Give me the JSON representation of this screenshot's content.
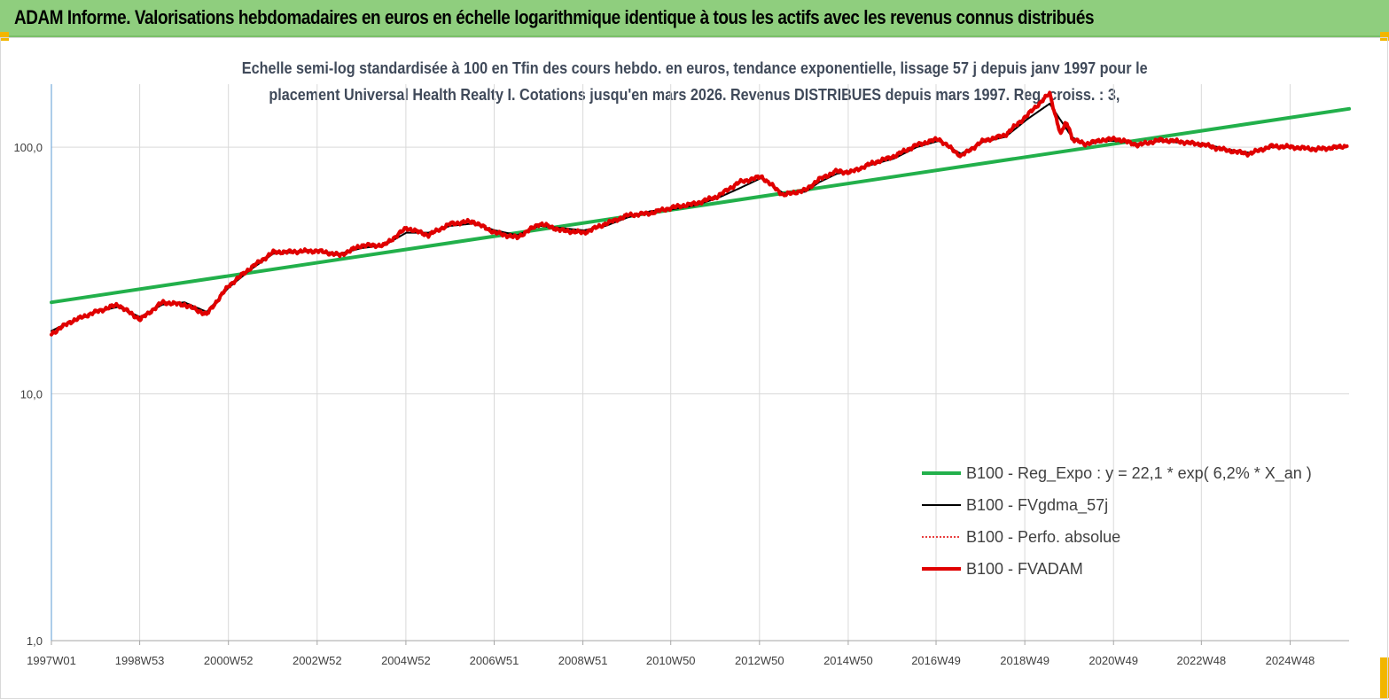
{
  "header": {
    "title": "ADAM Informe. Valorisations hebdomadaires en euros en échelle logarithmique identique à tous les actifs avec les revenus connus distribués"
  },
  "colors": {
    "header_bg": "#8fce7e",
    "accent": "#f2b600",
    "green_series": "#22b04b",
    "black_series": "#000000",
    "red_series": "#e00000"
  },
  "chart_data": {
    "type": "line",
    "title_line1": "Echelle semi-log standardisée à 100 en Tfin des cours hebdo. en euros, tendance exponentielle, lissage 57 j depuis janv 1997 pour le",
    "title_line2": "placement Universal Health Realty I. Cotations jusqu'en mars 2026. Revenus DISTRIBUES depuis mars 1997. Reg. croiss. : 3,",
    "y_scale": "log",
    "ylim": [
      1,
      180
    ],
    "y_ticks": [
      1,
      10,
      100
    ],
    "y_tick_labels": [
      "1,0",
      "10,0",
      "100,0"
    ],
    "x_range": [
      1997.0,
      2026.25
    ],
    "x_ticks": [
      1997.0,
      1998.99,
      2000.99,
      2002.99,
      2004.99,
      2006.98,
      2008.98,
      2010.96,
      2012.96,
      2014.96,
      2016.94,
      2018.94,
      2020.94,
      2022.92,
      2024.92
    ],
    "x_tick_labels": [
      "1997W01",
      "1998W53",
      "2000W52",
      "2002W52",
      "2004W52",
      "2006W51",
      "2008W51",
      "2010W50",
      "2012W50",
      "2014W50",
      "2016W49",
      "2018W49",
      "2020W49",
      "2022W48",
      "2024W48"
    ],
    "grid": "vertical",
    "legend_position": "bottom-right",
    "series": [
      {
        "name": "B100 - Reg_Expo : y = 22,1 * exp( 6,2% *  X_an )",
        "color": "#22b04b",
        "style": "solid-thick",
        "x": [
          1997.0,
          2026.25
        ],
        "values": [
          23.5,
          143
        ]
      },
      {
        "name": "B100 - FVgdma_57j",
        "color": "#000000",
        "style": "solid-thin",
        "x": [
          1997.0,
          1997.4,
          1998.0,
          1998.5,
          1999.0,
          1999.5,
          2000.0,
          2000.5,
          2001.0,
          2001.5,
          2002.0,
          2003.0,
          2003.5,
          2004.0,
          2004.5,
          2005.0,
          2005.5,
          2006.0,
          2006.5,
          2007.0,
          2007.5,
          2008.0,
          2008.5,
          2009.0,
          2009.5,
          2010.0,
          2010.5,
          2011.0,
          2011.5,
          2012.0,
          2012.5,
          2013.0,
          2013.5,
          2014.0,
          2014.3,
          2014.7,
          2015.0,
          2015.5,
          2016.0,
          2016.5,
          2017.0,
          2017.5,
          2018.0,
          2018.5,
          2019.0,
          2019.5,
          2020.0,
          2020.3,
          2020.7,
          2021.0,
          2021.5,
          2022.0,
          2022.5,
          2023.0,
          2023.5,
          2024.0,
          2024.5,
          2025.0,
          2025.5,
          2026.2
        ],
        "values": [
          18,
          19.5,
          21.5,
          22.5,
          20.5,
          23,
          23.5,
          21.5,
          27,
          32,
          37,
          38,
          37,
          39,
          40,
          45,
          45,
          48,
          49,
          46,
          44,
          48,
          47,
          46,
          48,
          52,
          55,
          56,
          58,
          62,
          68,
          75,
          65,
          66,
          72,
          78,
          80,
          85,
          90,
          100,
          106,
          94,
          105,
          110,
          130,
          150,
          110,
          102,
          106,
          106,
          103,
          106,
          104,
          103,
          98,
          95,
          100,
          100,
          98,
          100
        ]
      },
      {
        "name": "B100 - Perfo. absolue",
        "color": "#e00000",
        "style": "dotted",
        "x": [
          1997.0,
          2026.2
        ],
        "values": [
          18,
          100
        ]
      },
      {
        "name": "B100 - FVADAM",
        "color": "#e00000",
        "style": "solid-thick",
        "x": [
          1997.0,
          1997.4,
          1998.0,
          1998.5,
          1999.0,
          1999.5,
          2000.0,
          2000.5,
          2001.0,
          2001.5,
          2002.0,
          2003.0,
          2003.5,
          2004.0,
          2004.5,
          2005.0,
          2005.5,
          2006.0,
          2006.5,
          2007.0,
          2007.5,
          2008.0,
          2008.5,
          2009.0,
          2009.5,
          2010.0,
          2010.5,
          2011.0,
          2011.5,
          2012.0,
          2012.5,
          2013.0,
          2013.5,
          2014.0,
          2014.3,
          2014.7,
          2015.0,
          2015.5,
          2016.0,
          2016.5,
          2017.0,
          2017.5,
          2018.0,
          2018.5,
          2019.0,
          2019.5,
          2019.75,
          2019.85,
          2019.95,
          2020.0,
          2020.3,
          2020.7,
          2021.0,
          2021.5,
          2022.0,
          2022.5,
          2023.0,
          2023.5,
          2024.0,
          2024.5,
          2025.0,
          2025.5,
          2026.2
        ],
        "values": [
          17.5,
          19.5,
          21.5,
          23,
          20,
          23.5,
          23,
          21,
          27.5,
          32.5,
          37.5,
          38,
          36.5,
          40,
          40,
          47,
          44,
          49,
          50,
          45,
          43,
          49,
          46,
          45,
          49,
          53,
          54,
          57,
          59,
          63,
          72,
          76,
          64,
          67,
          74,
          80,
          79,
          86,
          92,
          102,
          108,
          92,
          106,
          112,
          135,
          165,
          112,
          125,
          120,
          108,
          103,
          107,
          108,
          102,
          107,
          105,
          102,
          97,
          94,
          101,
          100,
          98,
          101
        ]
      }
    ]
  }
}
